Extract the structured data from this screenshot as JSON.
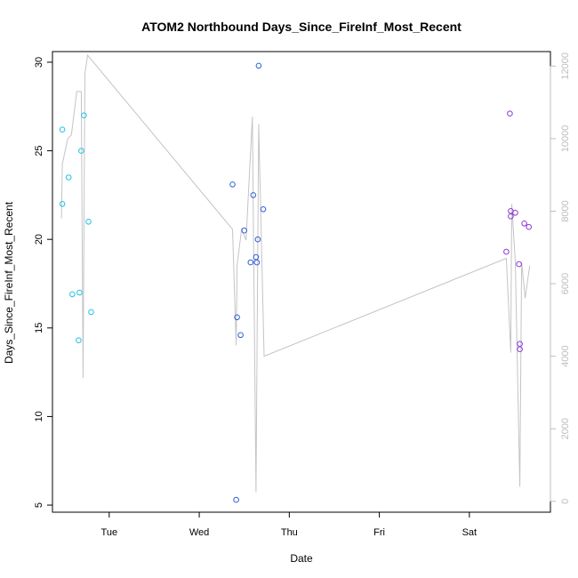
{
  "chart_data": {
    "type": "scatter",
    "title": "ATOM2 Northbound Days_Since_FireInf_Most_Recent",
    "xlabel": "Date",
    "ylabel": "Days_Since_FireInf_Most_Recent",
    "x_unit": "days",
    "x_range": [
      -0.63,
      4.9
    ],
    "ylim": [
      4.6,
      30.6
    ],
    "y_ticks": [
      5,
      10,
      15,
      20,
      25,
      30
    ],
    "x_ticks": [
      {
        "label": "Tue",
        "x": 0
      },
      {
        "label": "Wed",
        "x": 1
      },
      {
        "label": "Thu",
        "x": 2
      },
      {
        "label": "Fri",
        "x": 3
      },
      {
        "label": "Sat",
        "x": 4
      }
    ],
    "y2_range": [
      -300,
      12400
    ],
    "y2_ticks": [
      0,
      2000,
      4000,
      6000,
      8000,
      10000,
      12000
    ],
    "colors": {
      "series_1": "#22c2e6",
      "series_2": "#2f5fd8",
      "series_3": "#8a3ad6",
      "line": "#c4c4c4",
      "right_axis": "#bdbdbd"
    },
    "series": [
      {
        "color": "#22c2e6",
        "points": [
          {
            "x": -0.52,
            "y": 26.2
          },
          {
            "x": -0.52,
            "y": 22.0
          },
          {
            "x": -0.45,
            "y": 23.5
          },
          {
            "x": -0.41,
            "y": 16.9
          },
          {
            "x": -0.34,
            "y": 14.3
          },
          {
            "x": -0.33,
            "y": 17.0
          },
          {
            "x": -0.31,
            "y": 25.0
          },
          {
            "x": -0.28,
            "y": 27.0
          },
          {
            "x": -0.23,
            "y": 21.0
          },
          {
            "x": -0.2,
            "y": 15.9
          }
        ]
      },
      {
        "color": "#2f5fd8",
        "points": [
          {
            "x": 1.37,
            "y": 23.1
          },
          {
            "x": 1.41,
            "y": 5.3
          },
          {
            "x": 1.42,
            "y": 15.6
          },
          {
            "x": 1.46,
            "y": 14.6
          },
          {
            "x": 1.5,
            "y": 20.5
          },
          {
            "x": 1.57,
            "y": 18.7
          },
          {
            "x": 1.6,
            "y": 22.5
          },
          {
            "x": 1.63,
            "y": 19.0
          },
          {
            "x": 1.64,
            "y": 18.7
          },
          {
            "x": 1.65,
            "y": 20.0
          },
          {
            "x": 1.66,
            "y": 29.8
          },
          {
            "x": 1.71,
            "y": 21.7
          }
        ]
      },
      {
        "color": "#8a3ad6",
        "points": [
          {
            "x": 4.41,
            "y": 19.3
          },
          {
            "x": 4.45,
            "y": 27.1
          },
          {
            "x": 4.46,
            "y": 21.6
          },
          {
            "x": 4.46,
            "y": 21.3
          },
          {
            "x": 4.51,
            "y": 21.5
          },
          {
            "x": 4.55,
            "y": 18.6
          },
          {
            "x": 4.56,
            "y": 14.1
          },
          {
            "x": 4.56,
            "y": 13.8
          },
          {
            "x": 4.61,
            "y": 20.9
          },
          {
            "x": 4.66,
            "y": 20.7
          }
        ]
      }
    ],
    "line_series": [
      {
        "x": -0.53,
        "y2": 7800
      },
      {
        "x": -0.52,
        "y2": 9300
      },
      {
        "x": -0.46,
        "y2": 10000
      },
      {
        "x": -0.42,
        "y2": 10100
      },
      {
        "x": -0.36,
        "y2": 11300
      },
      {
        "x": -0.31,
        "y2": 11300
      },
      {
        "x": -0.29,
        "y2": 3400
      },
      {
        "x": -0.27,
        "y2": 11800
      },
      {
        "x": -0.24,
        "y2": 12300
      },
      {
        "x": 1.37,
        "y2": 7500
      },
      {
        "x": 1.41,
        "y2": 4300
      },
      {
        "x": 1.42,
        "y2": 6500
      },
      {
        "x": 1.47,
        "y2": 7500
      },
      {
        "x": 1.52,
        "y2": 7200
      },
      {
        "x": 1.59,
        "y2": 10600
      },
      {
        "x": 1.63,
        "y2": 250
      },
      {
        "x": 1.66,
        "y2": 10400
      },
      {
        "x": 1.72,
        "y2": 4000
      },
      {
        "x": 4.41,
        "y2": 6700
      },
      {
        "x": 4.46,
        "y2": 4100
      },
      {
        "x": 4.47,
        "y2": 8200
      },
      {
        "x": 4.51,
        "y2": 6600
      },
      {
        "x": 4.56,
        "y2": 400
      },
      {
        "x": 4.58,
        "y2": 6600
      },
      {
        "x": 4.62,
        "y2": 5600
      },
      {
        "x": 4.67,
        "y2": 6500
      }
    ]
  }
}
